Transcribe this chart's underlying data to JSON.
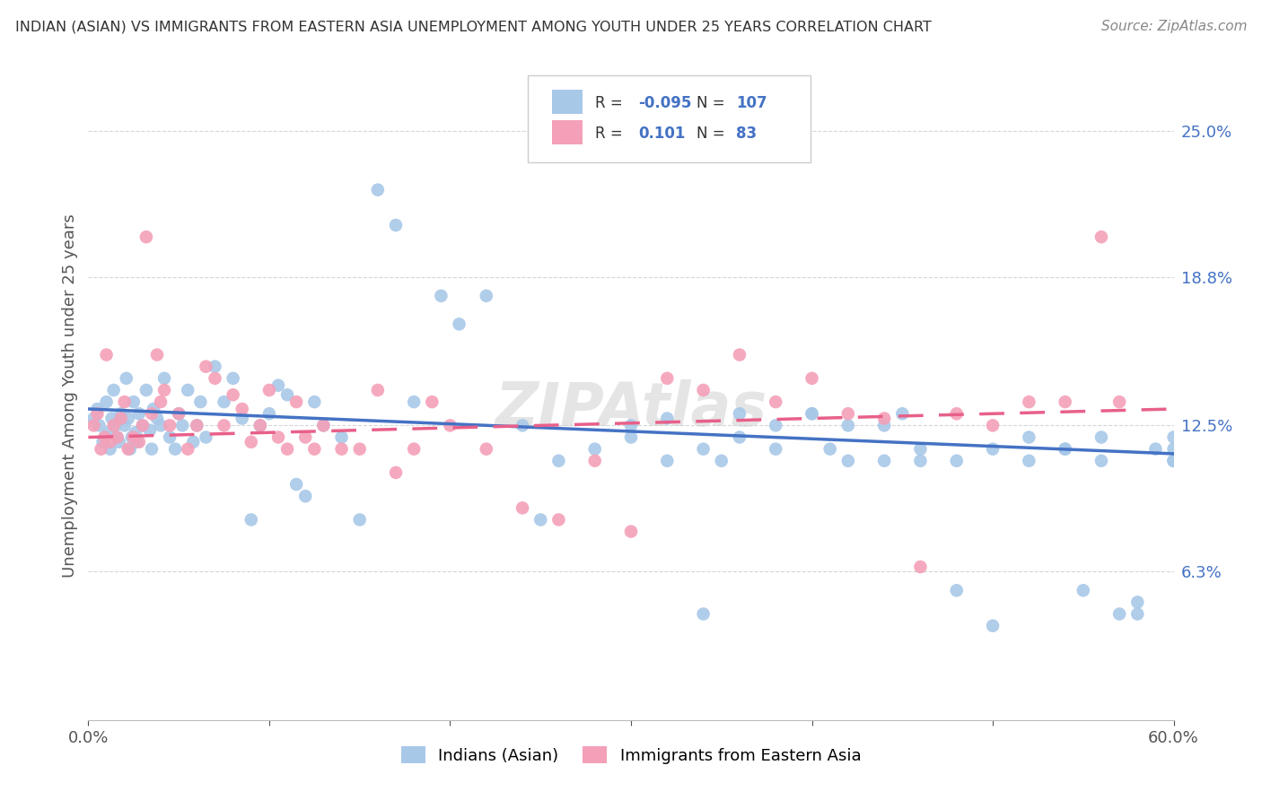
{
  "title": "INDIAN (ASIAN) VS IMMIGRANTS FROM EASTERN ASIA UNEMPLOYMENT AMONG YOUTH UNDER 25 YEARS CORRELATION CHART",
  "source": "Source: ZipAtlas.com",
  "ylabel": "Unemployment Among Youth under 25 years",
  "ytick_values": [
    6.3,
    12.5,
    18.8,
    25.0
  ],
  "xmin": 0.0,
  "xmax": 60.0,
  "ymin": 0.0,
  "ymax": 27.5,
  "color_blue": "#A8C8E8",
  "color_pink": "#F4A0B8",
  "color_blue_line": "#4472C4",
  "color_pink_line": "#E8608A",
  "color_blue_text": "#4472C4",
  "background": "#FFFFFF",
  "title_color": "#333333",
  "source_color": "#888888",
  "grid_color": "#CCCCCC",
  "blue_x": [
    0.3,
    0.5,
    0.6,
    0.8,
    0.9,
    1.0,
    1.1,
    1.2,
    1.3,
    1.4,
    1.5,
    1.6,
    1.7,
    1.8,
    2.0,
    2.1,
    2.2,
    2.3,
    2.4,
    2.5,
    2.6,
    2.7,
    2.8,
    3.0,
    3.2,
    3.4,
    3.5,
    3.6,
    3.8,
    4.0,
    4.2,
    4.5,
    4.8,
    5.0,
    5.2,
    5.5,
    5.8,
    6.0,
    6.2,
    6.5,
    7.0,
    7.5,
    8.0,
    8.5,
    9.0,
    9.5,
    10.0,
    10.5,
    11.0,
    11.5,
    12.0,
    12.5,
    13.0,
    14.0,
    15.0,
    16.0,
    17.0,
    18.0,
    19.5,
    20.5,
    22.0,
    24.0,
    25.0,
    26.0,
    28.0,
    30.0,
    32.0,
    34.0,
    35.0,
    36.0,
    38.0,
    40.0,
    41.0,
    42.0,
    44.0,
    45.0,
    46.0,
    48.0,
    50.0,
    52.0,
    54.0,
    55.0,
    56.0,
    57.0,
    58.0,
    59.0,
    60.0,
    30.0,
    32.0,
    34.0,
    36.0,
    38.0,
    40.0,
    42.0,
    44.0,
    46.0,
    48.0,
    50.0,
    52.0,
    54.0,
    56.0,
    58.0,
    60.0,
    60.0,
    62.0,
    60.0,
    60.0
  ],
  "blue_y": [
    12.8,
    13.2,
    12.5,
    11.8,
    12.0,
    13.5,
    12.2,
    11.5,
    12.8,
    14.0,
    12.5,
    12.0,
    11.8,
    13.0,
    12.5,
    14.5,
    12.8,
    11.5,
    12.0,
    13.5,
    12.2,
    11.8,
    13.0,
    12.5,
    14.0,
    12.3,
    11.5,
    13.2,
    12.8,
    12.5,
    14.5,
    12.0,
    11.5,
    13.0,
    12.5,
    14.0,
    11.8,
    12.5,
    13.5,
    12.0,
    15.0,
    13.5,
    14.5,
    12.8,
    8.5,
    12.5,
    13.0,
    14.2,
    13.8,
    10.0,
    9.5,
    13.5,
    12.5,
    12.0,
    8.5,
    22.5,
    21.0,
    13.5,
    18.0,
    16.8,
    18.0,
    12.5,
    8.5,
    11.0,
    11.5,
    12.0,
    12.8,
    11.5,
    11.0,
    13.0,
    12.5,
    13.0,
    11.5,
    12.5,
    11.0,
    13.0,
    11.5,
    11.0,
    11.5,
    11.0,
    11.5,
    5.5,
    11.0,
    4.5,
    5.0,
    11.5,
    11.0,
    12.5,
    11.0,
    4.5,
    12.0,
    11.5,
    13.0,
    11.0,
    12.5,
    11.0,
    5.5,
    4.0,
    12.0,
    11.5,
    12.0,
    4.5,
    11.5,
    11.0,
    12.5,
    11.0,
    12.0
  ],
  "pink_x": [
    0.3,
    0.5,
    0.7,
    0.9,
    1.0,
    1.2,
    1.4,
    1.6,
    1.8,
    2.0,
    2.2,
    2.5,
    2.8,
    3.0,
    3.2,
    3.5,
    3.8,
    4.0,
    4.2,
    4.5,
    5.0,
    5.5,
    6.0,
    6.5,
    7.0,
    7.5,
    8.0,
    8.5,
    9.0,
    9.5,
    10.0,
    10.5,
    11.0,
    11.5,
    12.0,
    12.5,
    13.0,
    14.0,
    15.0,
    16.0,
    17.0,
    18.0,
    19.0,
    20.0,
    22.0,
    24.0,
    26.0,
    28.0,
    30.0,
    32.0,
    34.0,
    36.0,
    38.0,
    40.0,
    42.0,
    44.0,
    46.0,
    48.0,
    50.0,
    52.0,
    54.0,
    56.0,
    57.0
  ],
  "pink_y": [
    12.5,
    13.0,
    11.5,
    12.0,
    15.5,
    11.8,
    12.5,
    12.0,
    12.8,
    13.5,
    11.5,
    12.0,
    11.8,
    12.5,
    20.5,
    13.0,
    15.5,
    13.5,
    14.0,
    12.5,
    13.0,
    11.5,
    12.5,
    15.0,
    14.5,
    12.5,
    13.8,
    13.2,
    11.8,
    12.5,
    14.0,
    12.0,
    11.5,
    13.5,
    12.0,
    11.5,
    12.5,
    11.5,
    11.5,
    14.0,
    10.5,
    11.5,
    13.5,
    12.5,
    11.5,
    9.0,
    8.5,
    11.0,
    8.0,
    14.5,
    14.0,
    15.5,
    13.5,
    14.5,
    13.0,
    12.8,
    6.5,
    13.0,
    12.5,
    13.5,
    13.5,
    20.5,
    13.5
  ]
}
